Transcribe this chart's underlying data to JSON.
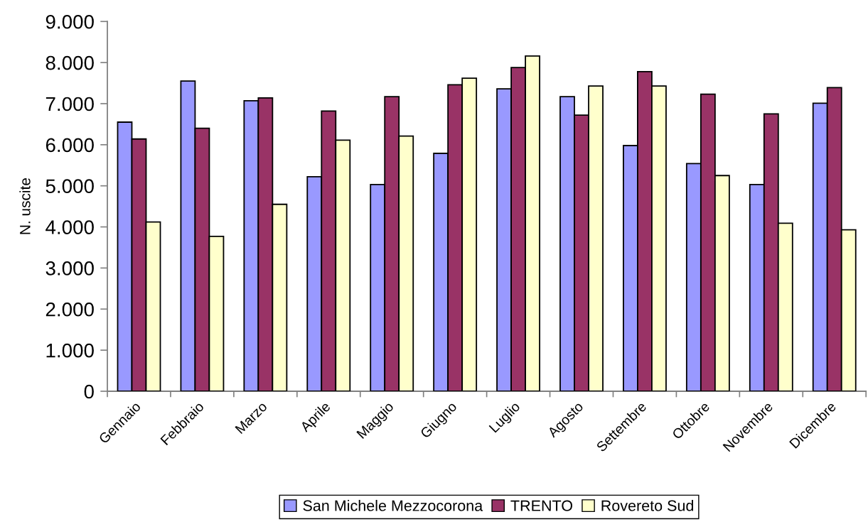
{
  "chart_data": {
    "type": "bar",
    "ylabel": "N. uscite",
    "categories": [
      "Gennaio",
      "Febbraio",
      "Marzo",
      "Aprile",
      "Maggio",
      "Giugno",
      "Luglio",
      "Agosto",
      "Settembre",
      "Ottobre",
      "Novembre",
      "Dicembre"
    ],
    "series": [
      {
        "name": "San Michele Mezzocorona",
        "color": "#9999ff",
        "values": [
          6550,
          7550,
          7070,
          5220,
          5030,
          5790,
          7360,
          7170,
          5980,
          5540,
          5030,
          7010
        ]
      },
      {
        "name": "TRENTO",
        "color": "#993366",
        "values": [
          6140,
          6400,
          7140,
          6820,
          7170,
          7460,
          7880,
          6720,
          7780,
          7230,
          6750,
          7390
        ]
      },
      {
        "name": "Rovereto Sud",
        "color": "#ffffcc",
        "values": [
          4120,
          3770,
          4550,
          6110,
          6210,
          7620,
          8160,
          7430,
          7430,
          5250,
          4090,
          3930
        ]
      }
    ],
    "ylim": [
      0,
      9000
    ],
    "yticks": [
      0,
      {
        "value": 1000,
        "label": "1.000"
      },
      {
        "value": 2000,
        "label": "2.000"
      },
      {
        "value": 3000,
        "label": "3.000"
      },
      {
        "value": 4000,
        "label": "4.000"
      },
      {
        "value": 5000,
        "label": "5.000"
      },
      {
        "value": 6000,
        "label": "6.000"
      },
      {
        "value": 7000,
        "label": "7.000"
      },
      {
        "value": 8000,
        "label": "8.000"
      },
      {
        "value": 9000,
        "label": "9.000"
      }
    ],
    "legend": "bottom",
    "grid": false
  }
}
